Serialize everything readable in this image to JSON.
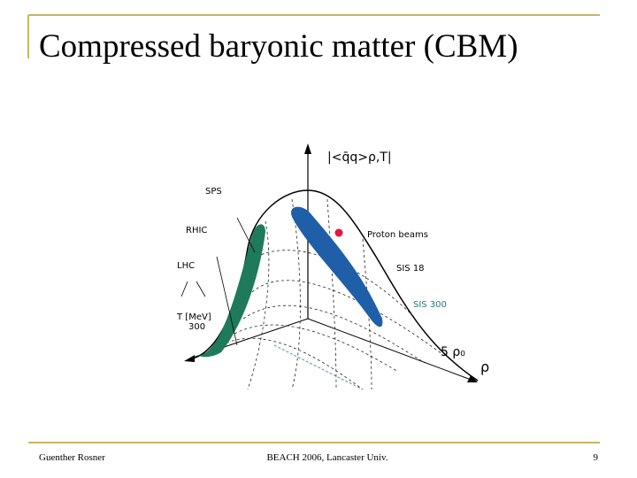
{
  "title": "Compressed baryonic matter (CBM)",
  "diagram": {
    "axis_condensate": "|<q̄q>ρ,T|",
    "labels": {
      "sps": "SPS",
      "rhic": "RHIC",
      "lhc": "LHC",
      "proton_beams": "Proton beams",
      "sis18": "SIS 18",
      "sis300": "SIS 300",
      "t_axis": "T [MeV]",
      "t_value": "300",
      "rho_value": "5 ρ₀",
      "rho_axis": "ρ"
    }
  },
  "footer": {
    "author": "Guenther Rosner",
    "event": "BEACH 2006, Lancaster Univ.",
    "page": "9"
  }
}
